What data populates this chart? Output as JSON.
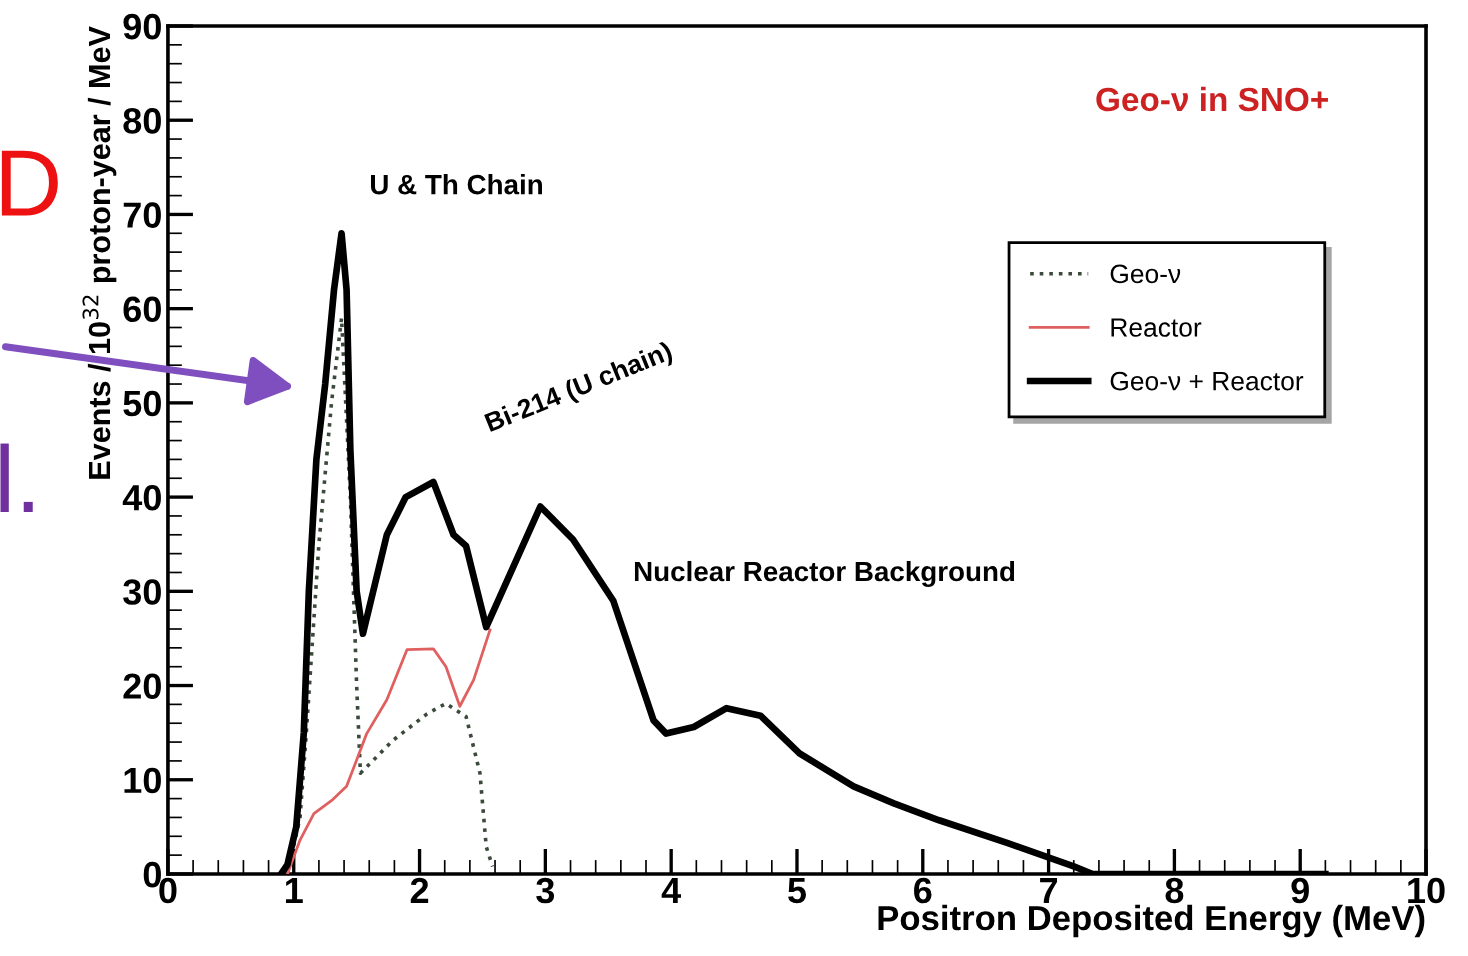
{
  "chart_data": {
    "type": "line",
    "xlabel": "Positron Deposited Energy (MeV)",
    "ylabel": "Events / 10$^{32}$ proton-year / MeV",
    "xlim": [
      0,
      10
    ],
    "xticks": [
      0,
      1,
      2,
      3,
      4,
      5,
      6,
      7,
      8,
      9,
      10
    ],
    "ylim": [
      0,
      90
    ],
    "yticks": [
      0,
      10,
      20,
      30,
      40,
      50,
      60,
      70,
      80,
      90
    ],
    "grid": false,
    "legend": "top right",
    "series": [
      {
        "name": "Geo-ν",
        "color": "#3c4a3c",
        "line_style": "dotted",
        "x": [
          0.95,
          1.05,
          1.1,
          1.2,
          1.3,
          1.38,
          1.45,
          1.5,
          1.53,
          1.79,
          2.06,
          2.21,
          2.37,
          2.48,
          2.53,
          2.58
        ],
        "values": [
          0,
          6,
          15,
          35,
          50,
          59,
          40,
          20,
          10.7,
          14.2,
          17,
          18.1,
          16.7,
          10.7,
          2.9,
          0.8
        ]
      },
      {
        "name": "Reactor",
        "color": "#e06060",
        "line_style": "solid",
        "x": [
          0.95,
          1.05,
          1.16,
          1.31,
          1.42,
          1.58,
          1.74,
          1.9,
          2.11,
          2.21,
          2.32,
          2.43,
          2.56
        ],
        "values": [
          0,
          3.6,
          6.4,
          7.9,
          9.3,
          14.9,
          18.5,
          23.8,
          23.9,
          22,
          17.8,
          20.6,
          25.9
        ]
      },
      {
        "name": "Geo-ν + Reactor",
        "color": "#000000",
        "line_style": "solid",
        "x": [
          0.9,
          0.95,
          1.02,
          1.08,
          1.12,
          1.18,
          1.25,
          1.32,
          1.38,
          1.42,
          1.45,
          1.5,
          1.55,
          1.74,
          1.89,
          2.11,
          2.27,
          2.37,
          2.53,
          2.96,
          3.22,
          3.54,
          3.86,
          3.96,
          4.18,
          4.44,
          4.71,
          5.02,
          5.45,
          5.77,
          6.13,
          6.67,
          7.2,
          7.35,
          9.2
        ],
        "values": [
          0,
          1,
          5,
          15,
          30,
          44,
          52,
          62,
          68,
          62,
          45,
          30,
          25.5,
          36,
          40,
          41.6,
          36,
          34.8,
          26.2,
          39,
          35.5,
          29,
          16.3,
          14.9,
          15.6,
          17.6,
          16.8,
          12.8,
          9.3,
          7.5,
          5.7,
          3.3,
          0.8,
          0,
          0
        ]
      }
    ],
    "annotations": [
      {
        "text": "U & Th Chain",
        "x": 1.38,
        "y": 68
      },
      {
        "text": "Bi-214 (U chain)",
        "x": 2.1,
        "y": 41.6
      },
      {
        "text": "Nuclear Reactor Background",
        "x": 3.3,
        "y": 34
      },
      "Geo-ν in SNO+",
      "D",
      "l."
    ]
  }
}
